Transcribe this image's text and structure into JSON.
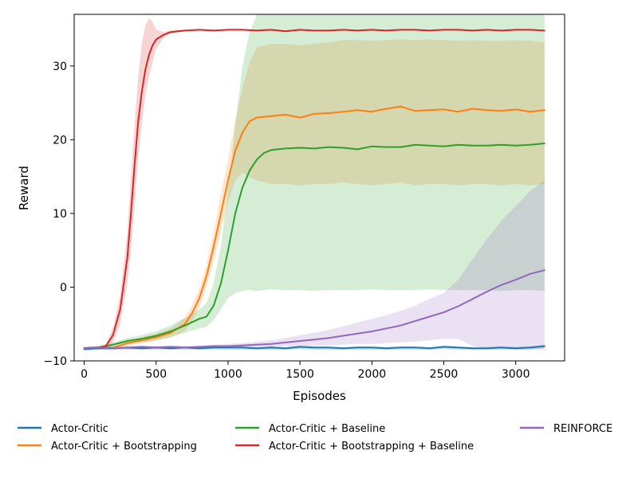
{
  "chart_data": {
    "type": "line",
    "title": "",
    "xlabel": "Episodes",
    "ylabel": "Reward",
    "xlim": [
      -70,
      3340
    ],
    "ylim": [
      -10,
      37
    ],
    "xticks": [
      0,
      500,
      1000,
      1500,
      2000,
      2500,
      3000
    ],
    "yticks": [
      -10,
      0,
      10,
      20,
      30
    ],
    "ytick_labels": [
      "−10",
      "0",
      "10",
      "20",
      "30"
    ],
    "grid": false,
    "legend_position": "below plot",
    "series": [
      {
        "name": "Actor-Critic",
        "color": "#1f77b4",
        "x": [
          0,
          100,
          200,
          300,
          400,
          500,
          600,
          700,
          800,
          900,
          1000,
          1100,
          1200,
          1300,
          1400,
          1500,
          1600,
          1700,
          1800,
          1900,
          2000,
          2100,
          2200,
          2300,
          2400,
          2500,
          2600,
          2700,
          2800,
          2900,
          3000,
          3100,
          3200
        ],
        "y": [
          -8.4,
          -8.3,
          -8.3,
          -8.2,
          -8.3,
          -8.2,
          -8.3,
          -8.2,
          -8.3,
          -8.2,
          -8.2,
          -8.2,
          -8.3,
          -8.2,
          -8.3,
          -8.1,
          -8.2,
          -8.2,
          -8.3,
          -8.2,
          -8.2,
          -8.3,
          -8.2,
          -8.2,
          -8.3,
          -8.1,
          -8.2,
          -8.3,
          -8.3,
          -8.2,
          -8.3,
          -8.2,
          -8.0
        ],
        "lower": [
          -8.6,
          -8.5,
          -8.5,
          -8.5,
          -8.5,
          -8.5,
          -8.5,
          -8.5,
          -8.5,
          -8.5,
          -8.5,
          -8.5,
          -8.5,
          -8.5,
          -8.5,
          -8.4,
          -8.5,
          -8.5,
          -8.5,
          -8.5,
          -8.5,
          -8.5,
          -8.5,
          -8.5,
          -8.5,
          -8.4,
          -8.5,
          -8.5,
          -8.5,
          -8.5,
          -8.5,
          -8.5,
          -8.3
        ],
        "upper": [
          -8.2,
          -8.1,
          -8.1,
          -8.0,
          -8.1,
          -8.0,
          -8.1,
          -8.0,
          -8.1,
          -8.0,
          -8.0,
          -8.0,
          -8.1,
          -8.0,
          -8.1,
          -7.9,
          -8.0,
          -8.0,
          -8.1,
          -8.0,
          -8.0,
          -8.1,
          -8.0,
          -8.0,
          -8.1,
          -7.9,
          -8.0,
          -8.1,
          -8.1,
          -8.0,
          -8.1,
          -8.0,
          -7.8
        ]
      },
      {
        "name": "Actor-Critic + Bootstrapping",
        "color": "#ff7f0e",
        "x": [
          0,
          100,
          200,
          300,
          400,
          500,
          600,
          700,
          750,
          800,
          850,
          900,
          950,
          1000,
          1050,
          1100,
          1150,
          1200,
          1300,
          1400,
          1500,
          1600,
          1700,
          1800,
          1900,
          2000,
          2100,
          2200,
          2300,
          2400,
          2500,
          2600,
          2700,
          2800,
          2900,
          3000,
          3100,
          3200
        ],
        "y": [
          -8.3,
          -8.2,
          -8.2,
          -7.6,
          -7.2,
          -6.8,
          -6.2,
          -5.0,
          -3.5,
          -1.5,
          1.5,
          5.5,
          10.0,
          14.5,
          18.5,
          21.0,
          22.5,
          23.0,
          23.2,
          23.4,
          23.0,
          23.5,
          23.6,
          23.8,
          24.0,
          23.8,
          24.2,
          24.5,
          23.9,
          24.0,
          24.1,
          23.8,
          24.2,
          24.0,
          23.9,
          24.1,
          23.8,
          24.0
        ],
        "lower": [
          -8.5,
          -8.4,
          -8.4,
          -7.9,
          -7.6,
          -7.3,
          -6.8,
          -5.9,
          -4.6,
          -2.8,
          0.0,
          3.5,
          7.5,
          11.5,
          14.5,
          15.5,
          15.0,
          14.5,
          14.0,
          14.0,
          13.8,
          14.0,
          14.0,
          14.2,
          14.0,
          13.8,
          14.0,
          14.2,
          13.8,
          14.0,
          14.0,
          13.8,
          14.0,
          14.0,
          13.8,
          14.0,
          13.8,
          14.0
        ],
        "upper": [
          -8.1,
          -8.0,
          -8.0,
          -7.3,
          -6.8,
          -6.3,
          -5.6,
          -4.1,
          -2.4,
          -0.2,
          3.0,
          7.5,
          12.5,
          17.5,
          22.5,
          27.0,
          30.5,
          32.5,
          33.0,
          33.0,
          32.8,
          33.0,
          33.2,
          33.5,
          33.5,
          33.4,
          33.5,
          33.6,
          33.5,
          33.6,
          33.5,
          33.4,
          33.5,
          33.4,
          33.4,
          33.5,
          33.4,
          33.2
        ]
      },
      {
        "name": "Actor-Critic + Baseline",
        "color": "#2ca02c",
        "x": [
          0,
          100,
          200,
          300,
          400,
          500,
          600,
          700,
          800,
          850,
          900,
          950,
          1000,
          1050,
          1100,
          1150,
          1200,
          1250,
          1300,
          1400,
          1500,
          1600,
          1700,
          1800,
          1900,
          2000,
          2100,
          2200,
          2300,
          2400,
          2500,
          2600,
          2700,
          2800,
          2900,
          3000,
          3100,
          3200
        ],
        "y": [
          -8.3,
          -8.2,
          -7.8,
          -7.3,
          -7.0,
          -6.6,
          -6.0,
          -5.2,
          -4.3,
          -4.0,
          -2.5,
          0.5,
          5.0,
          10.0,
          13.5,
          15.8,
          17.3,
          18.2,
          18.6,
          18.8,
          18.9,
          18.8,
          19.0,
          18.9,
          18.7,
          19.1,
          19.0,
          19.0,
          19.3,
          19.2,
          19.1,
          19.3,
          19.2,
          19.2,
          19.3,
          19.2,
          19.3,
          19.5
        ],
        "lower": [
          -8.5,
          -8.4,
          -8.1,
          -7.7,
          -7.5,
          -7.2,
          -6.8,
          -6.2,
          -5.6,
          -5.4,
          -4.5,
          -3.0,
          -1.5,
          -0.8,
          -0.5,
          -0.4,
          -0.5,
          -0.4,
          -0.3,
          -0.4,
          -0.4,
          -0.5,
          -0.4,
          -0.4,
          -0.4,
          -0.3,
          -0.4,
          -0.4,
          -0.4,
          -0.3,
          -0.4,
          -0.4,
          -0.4,
          -0.4,
          -0.5,
          -0.4,
          -0.4,
          -0.5
        ],
        "upper": [
          -8.1,
          -8.0,
          -7.5,
          -6.9,
          -6.5,
          -6.0,
          -5.2,
          -4.2,
          -3.0,
          -2.2,
          0.5,
          5.5,
          13.0,
          22.0,
          30.0,
          34.5,
          37.0,
          37.5,
          37.5,
          37.5,
          37.5,
          37.5,
          37.5,
          37.5,
          37.5,
          37.5,
          37.5,
          37.5,
          37.5,
          37.5,
          37.5,
          37.5,
          37.5,
          37.5,
          37.5,
          37.5,
          37.5,
          37.5
        ]
      },
      {
        "name": "Actor-Critic + Bootstrapping + Baseline",
        "color": "#d62728",
        "x": [
          0,
          100,
          150,
          200,
          250,
          300,
          325,
          350,
          375,
          400,
          425,
          450,
          475,
          500,
          550,
          600,
          700,
          800,
          900,
          1000,
          1100,
          1200,
          1300,
          1400,
          1500,
          1600,
          1700,
          1800,
          1900,
          2000,
          2100,
          2200,
          2300,
          2400,
          2500,
          2600,
          2700,
          2800,
          2900,
          3000,
          3100,
          3200
        ],
        "y": [
          -8.3,
          -8.2,
          -8.0,
          -6.5,
          -3.0,
          4.0,
          10.0,
          16.5,
          22.5,
          26.5,
          29.5,
          31.5,
          32.8,
          33.6,
          34.2,
          34.6,
          34.8,
          34.9,
          34.8,
          34.9,
          34.9,
          34.8,
          34.9,
          34.7,
          34.9,
          34.8,
          34.8,
          34.9,
          34.8,
          34.9,
          34.8,
          34.9,
          34.9,
          34.8,
          34.9,
          34.9,
          34.8,
          34.9,
          34.8,
          34.9,
          34.9,
          34.8
        ],
        "lower": [
          -8.5,
          -8.4,
          -8.3,
          -7.5,
          -5.0,
          0.5,
          5.0,
          11.0,
          17.5,
          22.0,
          26.0,
          28.5,
          30.5,
          32.3,
          33.8,
          34.4,
          34.7,
          34.8,
          34.7,
          34.8,
          34.8,
          34.7,
          34.8,
          34.6,
          34.8,
          34.7,
          34.7,
          34.8,
          34.7,
          34.8,
          34.7,
          34.8,
          34.8,
          34.7,
          34.8,
          34.8,
          34.7,
          34.8,
          34.7,
          34.8,
          34.8,
          34.7
        ],
        "upper": [
          -8.1,
          -8.0,
          -7.7,
          -5.5,
          -1.0,
          7.5,
          15.0,
          22.0,
          28.5,
          33.0,
          35.5,
          36.5,
          36.0,
          34.9,
          34.6,
          34.8,
          34.9,
          35.0,
          34.9,
          35.0,
          35.0,
          34.9,
          35.0,
          34.8,
          35.0,
          34.9,
          34.9,
          35.0,
          34.9,
          35.0,
          34.9,
          35.0,
          35.0,
          34.9,
          35.0,
          35.0,
          34.9,
          35.0,
          34.9,
          35.0,
          35.0,
          34.9
        ]
      },
      {
        "name": "REINFORCE",
        "color": "#9467bd",
        "x": [
          0,
          100,
          200,
          300,
          400,
          500,
          600,
          700,
          800,
          900,
          1000,
          1100,
          1200,
          1300,
          1400,
          1500,
          1600,
          1700,
          1800,
          1900,
          2000,
          2100,
          2200,
          2300,
          2400,
          2500,
          2600,
          2700,
          2800,
          2900,
          3000,
          3100,
          3200
        ],
        "y": [
          -8.3,
          -8.2,
          -8.3,
          -8.2,
          -8.1,
          -8.2,
          -8.1,
          -8.2,
          -8.1,
          -8.0,
          -8.0,
          -7.9,
          -7.8,
          -7.7,
          -7.5,
          -7.3,
          -7.1,
          -6.9,
          -6.6,
          -6.3,
          -6.0,
          -5.6,
          -5.2,
          -4.6,
          -4.0,
          -3.4,
          -2.6,
          -1.6,
          -0.6,
          0.3,
          1.0,
          1.8,
          2.3
        ],
        "lower": [
          -8.4,
          -8.4,
          -8.4,
          -8.4,
          -8.3,
          -8.3,
          -8.3,
          -8.3,
          -8.3,
          -8.2,
          -8.2,
          -8.2,
          -8.1,
          -8.1,
          -8.0,
          -8.0,
          -7.9,
          -7.9,
          -7.8,
          -7.7,
          -7.7,
          -7.6,
          -7.5,
          -7.4,
          -7.2,
          -7.0,
          -7.0,
          -8.0,
          -8.3,
          -8.3,
          -8.4,
          -8.4,
          -8.5
        ],
        "upper": [
          -8.2,
          -8.0,
          -8.1,
          -8.0,
          -7.9,
          -8.0,
          -7.9,
          -8.0,
          -7.9,
          -7.8,
          -7.7,
          -7.6,
          -7.4,
          -7.2,
          -6.9,
          -6.5,
          -6.2,
          -5.8,
          -5.3,
          -4.8,
          -4.3,
          -3.8,
          -3.2,
          -2.5,
          -1.6,
          -0.8,
          1.0,
          3.8,
          6.5,
          9.0,
          11.0,
          13.0,
          14.5
        ]
      }
    ]
  }
}
